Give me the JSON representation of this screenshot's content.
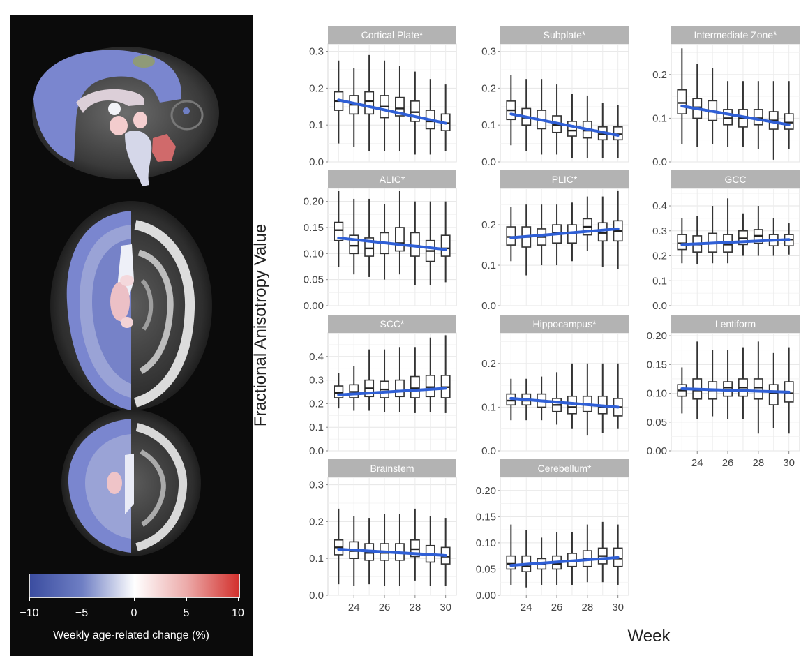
{
  "colorbar": {
    "label": "Weekly age-related change (%)",
    "ticks": [
      "−10",
      "−5",
      "0",
      "5",
      "10"
    ],
    "colors": {
      "low": "#3b4da0",
      "mid": "#ffffff",
      "high": "#d2302c"
    }
  },
  "chart_data": {
    "type": "box",
    "ylabel": "Fractional Anisotropy Value",
    "xlabel": "Week",
    "weeks": [
      23,
      24,
      25,
      26,
      27,
      28,
      29,
      30
    ],
    "x_ticks": [
      "24",
      "26",
      "28",
      "30"
    ],
    "panels": [
      {
        "title": "Cortical Plate*",
        "yticks": [
          "0.0",
          "0.1",
          "0.2",
          "0.3"
        ],
        "ylim": [
          0,
          0.32
        ],
        "fit": [
          0.168,
          0.105
        ],
        "boxes": [
          {
            "week": 23,
            "min": 0.05,
            "q1": 0.14,
            "median": 0.165,
            "q3": 0.19,
            "max": 0.275
          },
          {
            "week": 24,
            "min": 0.04,
            "q1": 0.13,
            "median": 0.155,
            "q3": 0.18,
            "max": 0.255
          },
          {
            "week": 25,
            "min": 0.03,
            "q1": 0.13,
            "median": 0.165,
            "q3": 0.19,
            "max": 0.29
          },
          {
            "week": 26,
            "min": 0.03,
            "q1": 0.12,
            "median": 0.15,
            "q3": 0.18,
            "max": 0.275
          },
          {
            "week": 27,
            "min": 0.03,
            "q1": 0.125,
            "median": 0.145,
            "q3": 0.175,
            "max": 0.26
          },
          {
            "week": 28,
            "min": 0.02,
            "q1": 0.11,
            "median": 0.135,
            "q3": 0.165,
            "max": 0.245
          },
          {
            "week": 29,
            "min": 0.02,
            "q1": 0.09,
            "median": 0.11,
            "q3": 0.14,
            "max": 0.225
          },
          {
            "week": 30,
            "min": 0.03,
            "q1": 0.085,
            "median": 0.105,
            "q3": 0.13,
            "max": 0.21
          }
        ]
      },
      {
        "title": "Subplate*",
        "yticks": [
          "0.0",
          "0.1",
          "0.2",
          "0.3"
        ],
        "ylim": [
          0,
          0.32
        ],
        "fit": [
          0.13,
          0.072
        ],
        "boxes": [
          {
            "week": 23,
            "min": 0.045,
            "q1": 0.115,
            "median": 0.14,
            "q3": 0.165,
            "max": 0.235
          },
          {
            "week": 24,
            "min": 0.03,
            "q1": 0.1,
            "median": 0.12,
            "q3": 0.145,
            "max": 0.225
          },
          {
            "week": 25,
            "min": 0.02,
            "q1": 0.09,
            "median": 0.115,
            "q3": 0.14,
            "max": 0.225
          },
          {
            "week": 26,
            "min": 0.02,
            "q1": 0.08,
            "median": 0.1,
            "q3": 0.125,
            "max": 0.21
          },
          {
            "week": 27,
            "min": 0.01,
            "q1": 0.07,
            "median": 0.085,
            "q3": 0.11,
            "max": 0.185
          },
          {
            "week": 28,
            "min": 0.01,
            "q1": 0.065,
            "median": 0.085,
            "q3": 0.11,
            "max": 0.18
          },
          {
            "week": 29,
            "min": 0.01,
            "q1": 0.06,
            "median": 0.075,
            "q3": 0.095,
            "max": 0.16
          },
          {
            "week": 30,
            "min": 0.01,
            "q1": 0.06,
            "median": 0.075,
            "q3": 0.095,
            "max": 0.155
          }
        ]
      },
      {
        "title": "Intermediate Zone*",
        "yticks": [
          "0.0",
          "0.1",
          "0.2"
        ],
        "ylim": [
          0,
          0.27
        ],
        "fit": [
          0.128,
          0.085
        ],
        "boxes": [
          {
            "week": 23,
            "min": 0.04,
            "q1": 0.11,
            "median": 0.135,
            "q3": 0.165,
            "max": 0.26
          },
          {
            "week": 24,
            "min": 0.035,
            "q1": 0.1,
            "median": 0.125,
            "q3": 0.145,
            "max": 0.225
          },
          {
            "week": 25,
            "min": 0.04,
            "q1": 0.095,
            "median": 0.115,
            "q3": 0.14,
            "max": 0.215
          },
          {
            "week": 26,
            "min": 0.035,
            "q1": 0.085,
            "median": 0.1,
            "q3": 0.12,
            "max": 0.185
          },
          {
            "week": 27,
            "min": 0.035,
            "q1": 0.08,
            "median": 0.1,
            "q3": 0.12,
            "max": 0.185
          },
          {
            "week": 28,
            "min": 0.03,
            "q1": 0.085,
            "median": 0.1,
            "q3": 0.12,
            "max": 0.185
          },
          {
            "week": 29,
            "min": 0.005,
            "q1": 0.075,
            "median": 0.095,
            "q3": 0.115,
            "max": 0.185
          },
          {
            "week": 30,
            "min": 0.03,
            "q1": 0.075,
            "median": 0.09,
            "q3": 0.11,
            "max": 0.185
          }
        ]
      },
      {
        "title": "ALIC*",
        "yticks": [
          "0.00",
          "0.05",
          "0.10",
          "0.15",
          "0.20"
        ],
        "ylim": [
          0,
          0.225
        ],
        "fit": [
          0.13,
          0.108
        ],
        "boxes": [
          {
            "week": 23,
            "min": 0.075,
            "q1": 0.125,
            "median": 0.145,
            "q3": 0.16,
            "max": 0.22
          },
          {
            "week": 24,
            "min": 0.06,
            "q1": 0.1,
            "median": 0.115,
            "q3": 0.135,
            "max": 0.205
          },
          {
            "week": 25,
            "min": 0.055,
            "q1": 0.095,
            "median": 0.11,
            "q3": 0.13,
            "max": 0.205
          },
          {
            "week": 26,
            "min": 0.05,
            "q1": 0.1,
            "median": 0.12,
            "q3": 0.14,
            "max": 0.195
          },
          {
            "week": 27,
            "min": 0.06,
            "q1": 0.105,
            "median": 0.12,
            "q3": 0.15,
            "max": 0.22
          },
          {
            "week": 28,
            "min": 0.04,
            "q1": 0.095,
            "median": 0.115,
            "q3": 0.14,
            "max": 0.2
          },
          {
            "week": 29,
            "min": 0.04,
            "q1": 0.085,
            "median": 0.105,
            "q3": 0.125,
            "max": 0.2
          },
          {
            "week": 30,
            "min": 0.045,
            "q1": 0.095,
            "median": 0.11,
            "q3": 0.135,
            "max": 0.2
          }
        ]
      },
      {
        "title": "PLIC*",
        "yticks": [
          "0.0",
          "0.1",
          "0.2"
        ],
        "ylim": [
          0,
          0.29
        ],
        "fit": [
          0.168,
          0.19
        ],
        "boxes": [
          {
            "week": 23,
            "min": 0.11,
            "q1": 0.15,
            "median": 0.17,
            "q3": 0.195,
            "max": 0.245
          },
          {
            "week": 24,
            "min": 0.075,
            "q1": 0.145,
            "median": 0.17,
            "q3": 0.195,
            "max": 0.25
          },
          {
            "week": 25,
            "min": 0.1,
            "q1": 0.15,
            "median": 0.17,
            "q3": 0.19,
            "max": 0.25
          },
          {
            "week": 26,
            "min": 0.1,
            "q1": 0.155,
            "median": 0.18,
            "q3": 0.2,
            "max": 0.25
          },
          {
            "week": 27,
            "min": 0.11,
            "q1": 0.155,
            "median": 0.18,
            "q3": 0.2,
            "max": 0.255
          },
          {
            "week": 28,
            "min": 0.135,
            "q1": 0.175,
            "median": 0.195,
            "q3": 0.215,
            "max": 0.27
          },
          {
            "week": 29,
            "min": 0.095,
            "q1": 0.16,
            "median": 0.18,
            "q3": 0.205,
            "max": 0.27
          },
          {
            "week": 30,
            "min": 0.09,
            "q1": 0.16,
            "median": 0.185,
            "q3": 0.21,
            "max": 0.285
          }
        ]
      },
      {
        "title": "GCC",
        "yticks": [
          "0.0",
          "0.1",
          "0.2",
          "0.3",
          "0.4"
        ],
        "ylim": [
          0,
          0.47
        ],
        "fit": [
          0.245,
          0.265
        ],
        "boxes": [
          {
            "week": 23,
            "min": 0.17,
            "q1": 0.225,
            "median": 0.25,
            "q3": 0.285,
            "max": 0.35
          },
          {
            "week": 24,
            "min": 0.165,
            "q1": 0.215,
            "median": 0.245,
            "q3": 0.28,
            "max": 0.36
          },
          {
            "week": 25,
            "min": 0.17,
            "q1": 0.215,
            "median": 0.25,
            "q3": 0.29,
            "max": 0.4
          },
          {
            "week": 26,
            "min": 0.17,
            "q1": 0.215,
            "median": 0.245,
            "q3": 0.285,
            "max": 0.43
          },
          {
            "week": 27,
            "min": 0.2,
            "q1": 0.245,
            "median": 0.27,
            "q3": 0.3,
            "max": 0.37
          },
          {
            "week": 28,
            "min": 0.2,
            "q1": 0.25,
            "median": 0.28,
            "q3": 0.305,
            "max": 0.4
          },
          {
            "week": 29,
            "min": 0.2,
            "q1": 0.24,
            "median": 0.265,
            "q3": 0.285,
            "max": 0.35
          },
          {
            "week": 30,
            "min": 0.205,
            "q1": 0.24,
            "median": 0.265,
            "q3": 0.285,
            "max": 0.33
          }
        ]
      },
      {
        "title": "SCC*",
        "yticks": [
          "0.0",
          "0.1",
          "0.2",
          "0.3",
          "0.4"
        ],
        "ylim": [
          0,
          0.5
        ],
        "fit": [
          0.237,
          0.265
        ],
        "boxes": [
          {
            "week": 23,
            "min": 0.18,
            "q1": 0.225,
            "median": 0.245,
            "q3": 0.275,
            "max": 0.33
          },
          {
            "week": 24,
            "min": 0.17,
            "q1": 0.225,
            "median": 0.25,
            "q3": 0.28,
            "max": 0.36
          },
          {
            "week": 25,
            "min": 0.17,
            "q1": 0.23,
            "median": 0.265,
            "q3": 0.3,
            "max": 0.43
          },
          {
            "week": 26,
            "min": 0.165,
            "q1": 0.225,
            "median": 0.26,
            "q3": 0.295,
            "max": 0.43
          },
          {
            "week": 27,
            "min": 0.165,
            "q1": 0.23,
            "median": 0.255,
            "q3": 0.3,
            "max": 0.44
          },
          {
            "week": 28,
            "min": 0.16,
            "q1": 0.225,
            "median": 0.265,
            "q3": 0.315,
            "max": 0.44
          },
          {
            "week": 29,
            "min": 0.165,
            "q1": 0.23,
            "median": 0.27,
            "q3": 0.32,
            "max": 0.48
          },
          {
            "week": 30,
            "min": 0.16,
            "q1": 0.225,
            "median": 0.27,
            "q3": 0.32,
            "max": 0.49
          }
        ]
      },
      {
        "title": "Hippocampus*",
        "yticks": [
          "0.0",
          "0.1",
          "0.2"
        ],
        "ylim": [
          0,
          0.27
        ],
        "fit": [
          0.12,
          0.1
        ],
        "boxes": [
          {
            "week": 23,
            "min": 0.07,
            "q1": 0.105,
            "median": 0.115,
            "q3": 0.13,
            "max": 0.165
          },
          {
            "week": 24,
            "min": 0.07,
            "q1": 0.105,
            "median": 0.115,
            "q3": 0.13,
            "max": 0.165
          },
          {
            "week": 25,
            "min": 0.07,
            "q1": 0.1,
            "median": 0.115,
            "q3": 0.13,
            "max": 0.17
          },
          {
            "week": 26,
            "min": 0.06,
            "q1": 0.09,
            "median": 0.105,
            "q3": 0.12,
            "max": 0.18
          },
          {
            "week": 27,
            "min": 0.05,
            "q1": 0.085,
            "median": 0.1,
            "q3": 0.125,
            "max": 0.2
          },
          {
            "week": 28,
            "min": 0.035,
            "q1": 0.09,
            "median": 0.105,
            "q3": 0.125,
            "max": 0.2
          },
          {
            "week": 29,
            "min": 0.04,
            "q1": 0.085,
            "median": 0.1,
            "q3": 0.125,
            "max": 0.2
          },
          {
            "week": 30,
            "min": 0.05,
            "q1": 0.08,
            "median": 0.1,
            "q3": 0.12,
            "max": 0.2
          }
        ]
      },
      {
        "title": "Lentiform",
        "yticks": [
          "0.00",
          "0.05",
          "0.10",
          "0.15",
          "0.20"
        ],
        "ylim": [
          0,
          0.205
        ],
        "fit": [
          0.108,
          0.102
        ],
        "boxes": [
          {
            "week": 23,
            "min": 0.065,
            "q1": 0.095,
            "median": 0.105,
            "q3": 0.115,
            "max": 0.145
          },
          {
            "week": 24,
            "min": 0.055,
            "q1": 0.09,
            "median": 0.105,
            "q3": 0.125,
            "max": 0.19
          },
          {
            "week": 25,
            "min": 0.06,
            "q1": 0.09,
            "median": 0.105,
            "q3": 0.12,
            "max": 0.175
          },
          {
            "week": 26,
            "min": 0.055,
            "q1": 0.095,
            "median": 0.11,
            "q3": 0.12,
            "max": 0.175
          },
          {
            "week": 27,
            "min": 0.055,
            "q1": 0.095,
            "median": 0.11,
            "q3": 0.125,
            "max": 0.18
          },
          {
            "week": 28,
            "min": 0.03,
            "q1": 0.09,
            "median": 0.11,
            "q3": 0.125,
            "max": 0.19
          },
          {
            "week": 29,
            "min": 0.04,
            "q1": 0.08,
            "median": 0.1,
            "q3": 0.115,
            "max": 0.17
          },
          {
            "week": 30,
            "min": 0.03,
            "q1": 0.085,
            "median": 0.1,
            "q3": 0.12,
            "max": 0.18
          }
        ]
      },
      {
        "title": "Brainstem",
        "yticks": [
          "0.0",
          "0.1",
          "0.2",
          "0.3"
        ],
        "ylim": [
          0,
          0.32
        ],
        "fit": [
          0.125,
          0.108
        ],
        "boxes": [
          {
            "week": 23,
            "min": 0.03,
            "q1": 0.11,
            "median": 0.13,
            "q3": 0.15,
            "max": 0.235
          },
          {
            "week": 24,
            "min": 0.025,
            "q1": 0.1,
            "median": 0.12,
            "q3": 0.145,
            "max": 0.215
          },
          {
            "week": 25,
            "min": 0.03,
            "q1": 0.095,
            "median": 0.115,
            "q3": 0.14,
            "max": 0.21
          },
          {
            "week": 26,
            "min": 0.025,
            "q1": 0.095,
            "median": 0.115,
            "q3": 0.14,
            "max": 0.22
          },
          {
            "week": 27,
            "min": 0.025,
            "q1": 0.095,
            "median": 0.115,
            "q3": 0.14,
            "max": 0.22
          },
          {
            "week": 28,
            "min": 0.04,
            "q1": 0.105,
            "median": 0.125,
            "q3": 0.15,
            "max": 0.235
          },
          {
            "week": 29,
            "min": 0.025,
            "q1": 0.09,
            "median": 0.11,
            "q3": 0.135,
            "max": 0.215
          },
          {
            "week": 30,
            "min": 0.025,
            "q1": 0.085,
            "median": 0.105,
            "q3": 0.13,
            "max": 0.21
          }
        ]
      },
      {
        "title": "Cerebellum*",
        "yticks": [
          "0.00",
          "0.05",
          "0.10",
          "0.15",
          "0.20"
        ],
        "ylim": [
          0,
          0.225
        ],
        "fit": [
          0.057,
          0.072
        ],
        "boxes": [
          {
            "week": 23,
            "min": 0.02,
            "q1": 0.05,
            "median": 0.06,
            "q3": 0.075,
            "max": 0.135
          },
          {
            "week": 24,
            "min": 0.015,
            "q1": 0.045,
            "median": 0.055,
            "q3": 0.075,
            "max": 0.125
          },
          {
            "week": 25,
            "min": 0.02,
            "q1": 0.05,
            "median": 0.06,
            "q3": 0.07,
            "max": 0.11
          },
          {
            "week": 26,
            "min": 0.02,
            "q1": 0.05,
            "median": 0.06,
            "q3": 0.075,
            "max": 0.12
          },
          {
            "week": 27,
            "min": 0.02,
            "q1": 0.055,
            "median": 0.065,
            "q3": 0.08,
            "max": 0.12
          },
          {
            "week": 28,
            "min": 0.025,
            "q1": 0.055,
            "median": 0.07,
            "q3": 0.085,
            "max": 0.135
          },
          {
            "week": 29,
            "min": 0.025,
            "q1": 0.06,
            "median": 0.075,
            "q3": 0.09,
            "max": 0.14
          },
          {
            "week": 30,
            "min": 0.02,
            "q1": 0.055,
            "median": 0.07,
            "q3": 0.09,
            "max": 0.135
          }
        ]
      }
    ],
    "fit_color": "#2f5fd6"
  }
}
